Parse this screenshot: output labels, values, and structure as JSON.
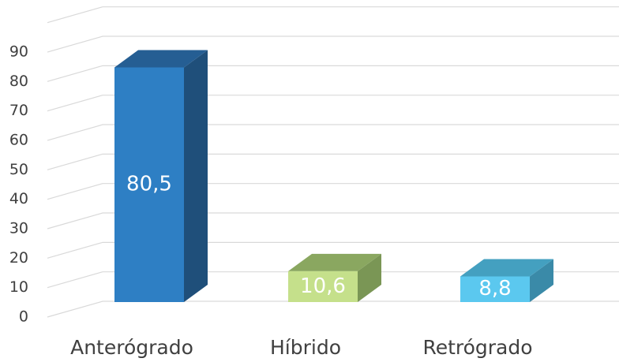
{
  "chart_data": {
    "type": "bar3d",
    "categories": [
      "Anterógrado",
      "Híbrido",
      "Retrógrado"
    ],
    "values": [
      80.5,
      10.6,
      8.8
    ],
    "value_labels": [
      "80,5",
      "10,6",
      "8,8"
    ],
    "colors": [
      "#2e7fc4",
      "#c5e08b",
      "#5bc8ef"
    ],
    "side_colors": [
      "#1f4f7a",
      "#7a9655",
      "#3a8aa8"
    ],
    "top_colors": [
      "#255e93",
      "#8aa760",
      "#44a0c0"
    ],
    "ylim": [
      0,
      100
    ],
    "yticks": [
      0,
      10,
      20,
      30,
      40,
      50,
      60,
      70,
      80,
      90
    ],
    "grid": true
  }
}
